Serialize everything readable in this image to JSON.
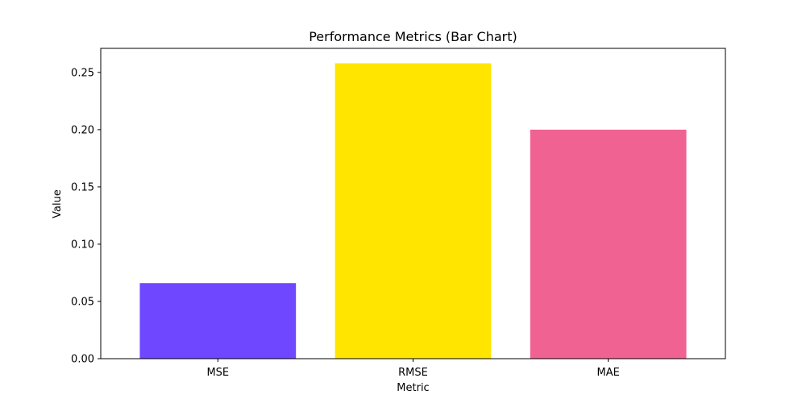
{
  "chart_data": {
    "type": "bar",
    "title": "Performance Metrics (Bar Chart)",
    "xlabel": "Metric",
    "ylabel": "Value",
    "categories": [
      "MSE",
      "RMSE",
      "MAE"
    ],
    "values": [
      0.066,
      0.258,
      0.2
    ],
    "colors": [
      "#6f47ff",
      "#ffe500",
      "#f06292"
    ],
    "ylim": [
      0,
      0.271
    ],
    "yticks": [
      0.0,
      0.05,
      0.1,
      0.15,
      0.2,
      0.25
    ],
    "ytick_labels": [
      "0.00",
      "0.05",
      "0.10",
      "0.15",
      "0.20",
      "0.25"
    ],
    "grid": false,
    "legend": "none"
  }
}
